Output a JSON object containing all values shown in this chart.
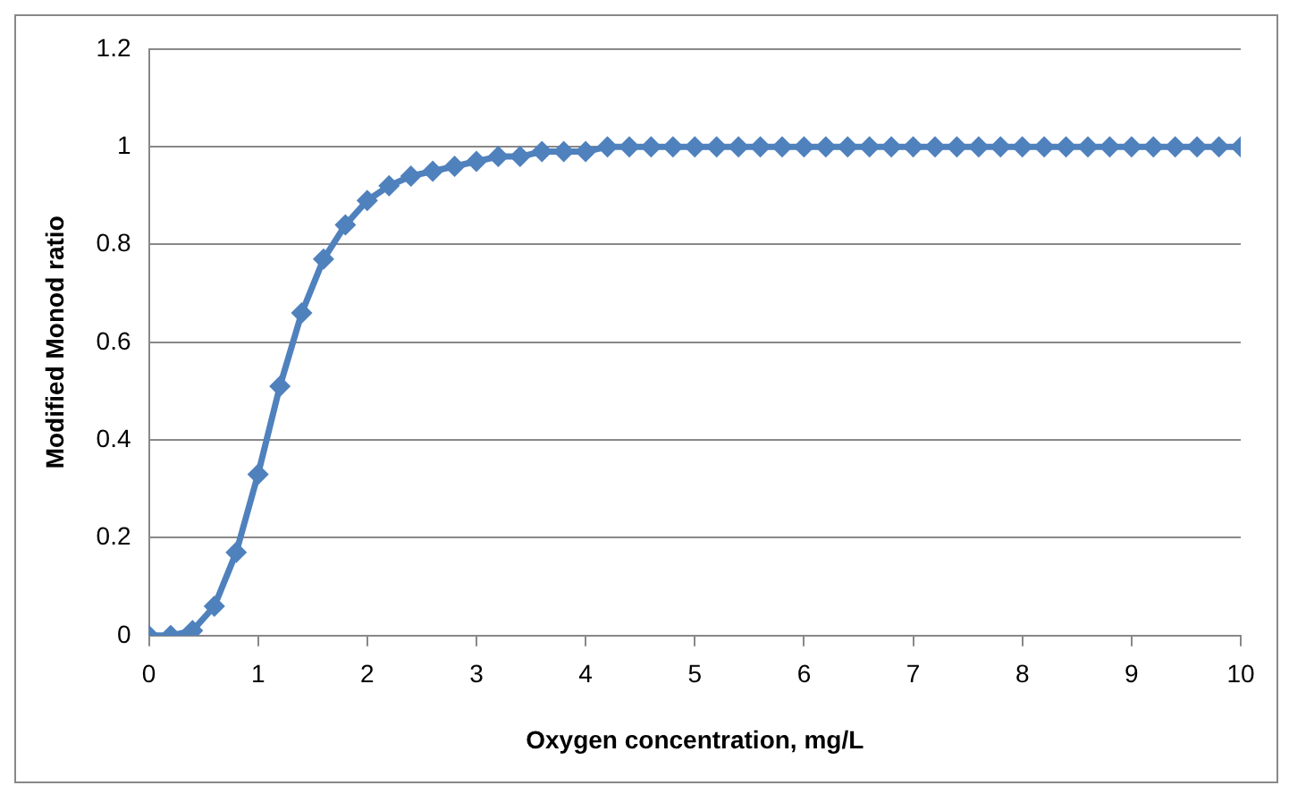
{
  "chart_data": {
    "type": "line",
    "xlabel": "Oxygen concentration, mg/L",
    "ylabel": "Modified Monod ratio",
    "x": [
      0,
      0.2,
      0.4,
      0.6,
      0.8,
      1,
      1.2,
      1.4,
      1.6,
      1.8,
      2,
      2.2,
      2.4,
      2.6,
      2.8,
      3,
      3.2,
      3.4,
      3.6,
      3.8,
      4,
      4.2,
      4.4,
      4.6,
      4.8,
      5,
      5.2,
      5.4,
      5.6,
      5.8,
      6,
      6.2,
      6.4,
      6.6,
      6.8,
      7,
      7.2,
      7.4,
      7.6,
      7.8,
      8,
      8.2,
      8.4,
      8.6,
      8.8,
      9,
      9.2,
      9.4,
      9.6,
      9.8,
      10
    ],
    "series": [
      {
        "color": "#4f81bd",
        "values": [
          0,
          0,
          0.01,
          0.06,
          0.17,
          0.33,
          0.51,
          0.66,
          0.77,
          0.84,
          0.89,
          0.92,
          0.94,
          0.95,
          0.96,
          0.97,
          0.98,
          0.98,
          0.99,
          0.99,
          0.99,
          1,
          1,
          1,
          1,
          1,
          1,
          1,
          1,
          1,
          1,
          1,
          1,
          1,
          1,
          1,
          1,
          1,
          1,
          1,
          1,
          1,
          1,
          1,
          1,
          1,
          1,
          1,
          1,
          1,
          1
        ]
      }
    ],
    "xlim": [
      0,
      10
    ],
    "xticks": [
      0,
      1,
      2,
      3,
      4,
      5,
      6,
      7,
      8,
      9,
      10
    ],
    "ylim": [
      0,
      1.2
    ],
    "yticks": [
      0,
      0.2,
      0.4,
      0.6,
      0.8,
      1,
      1.2
    ],
    "grid": "y",
    "legend": false,
    "marker": "diamond",
    "line_style": "solid"
  }
}
